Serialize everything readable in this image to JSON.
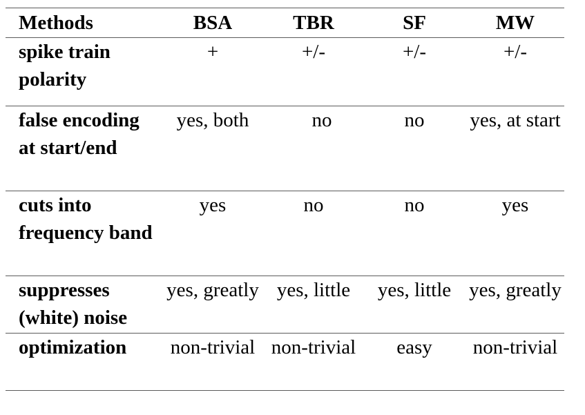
{
  "table": {
    "headers": [
      "Methods",
      "BSA",
      "TBR",
      "SF",
      "MW"
    ],
    "rows": [
      {
        "label": "spike train polarity",
        "cells": [
          "+",
          "+/-",
          "+/-",
          "+/-"
        ]
      },
      {
        "label": "false encoding at start/end",
        "cells": [
          "yes, both",
          "no",
          "no",
          "yes, at start"
        ]
      },
      {
        "label": "cuts into frequency band",
        "cells": [
          "yes",
          "no",
          "no",
          "yes"
        ]
      },
      {
        "label": "suppresses (white) noise",
        "cells": [
          "yes, greatly",
          "yes, little",
          "yes, little",
          "yes, greatly"
        ]
      },
      {
        "label": "optimization",
        "cells": [
          "non-trivial",
          "non-trivial",
          "easy",
          "non-trivial"
        ]
      }
    ]
  }
}
